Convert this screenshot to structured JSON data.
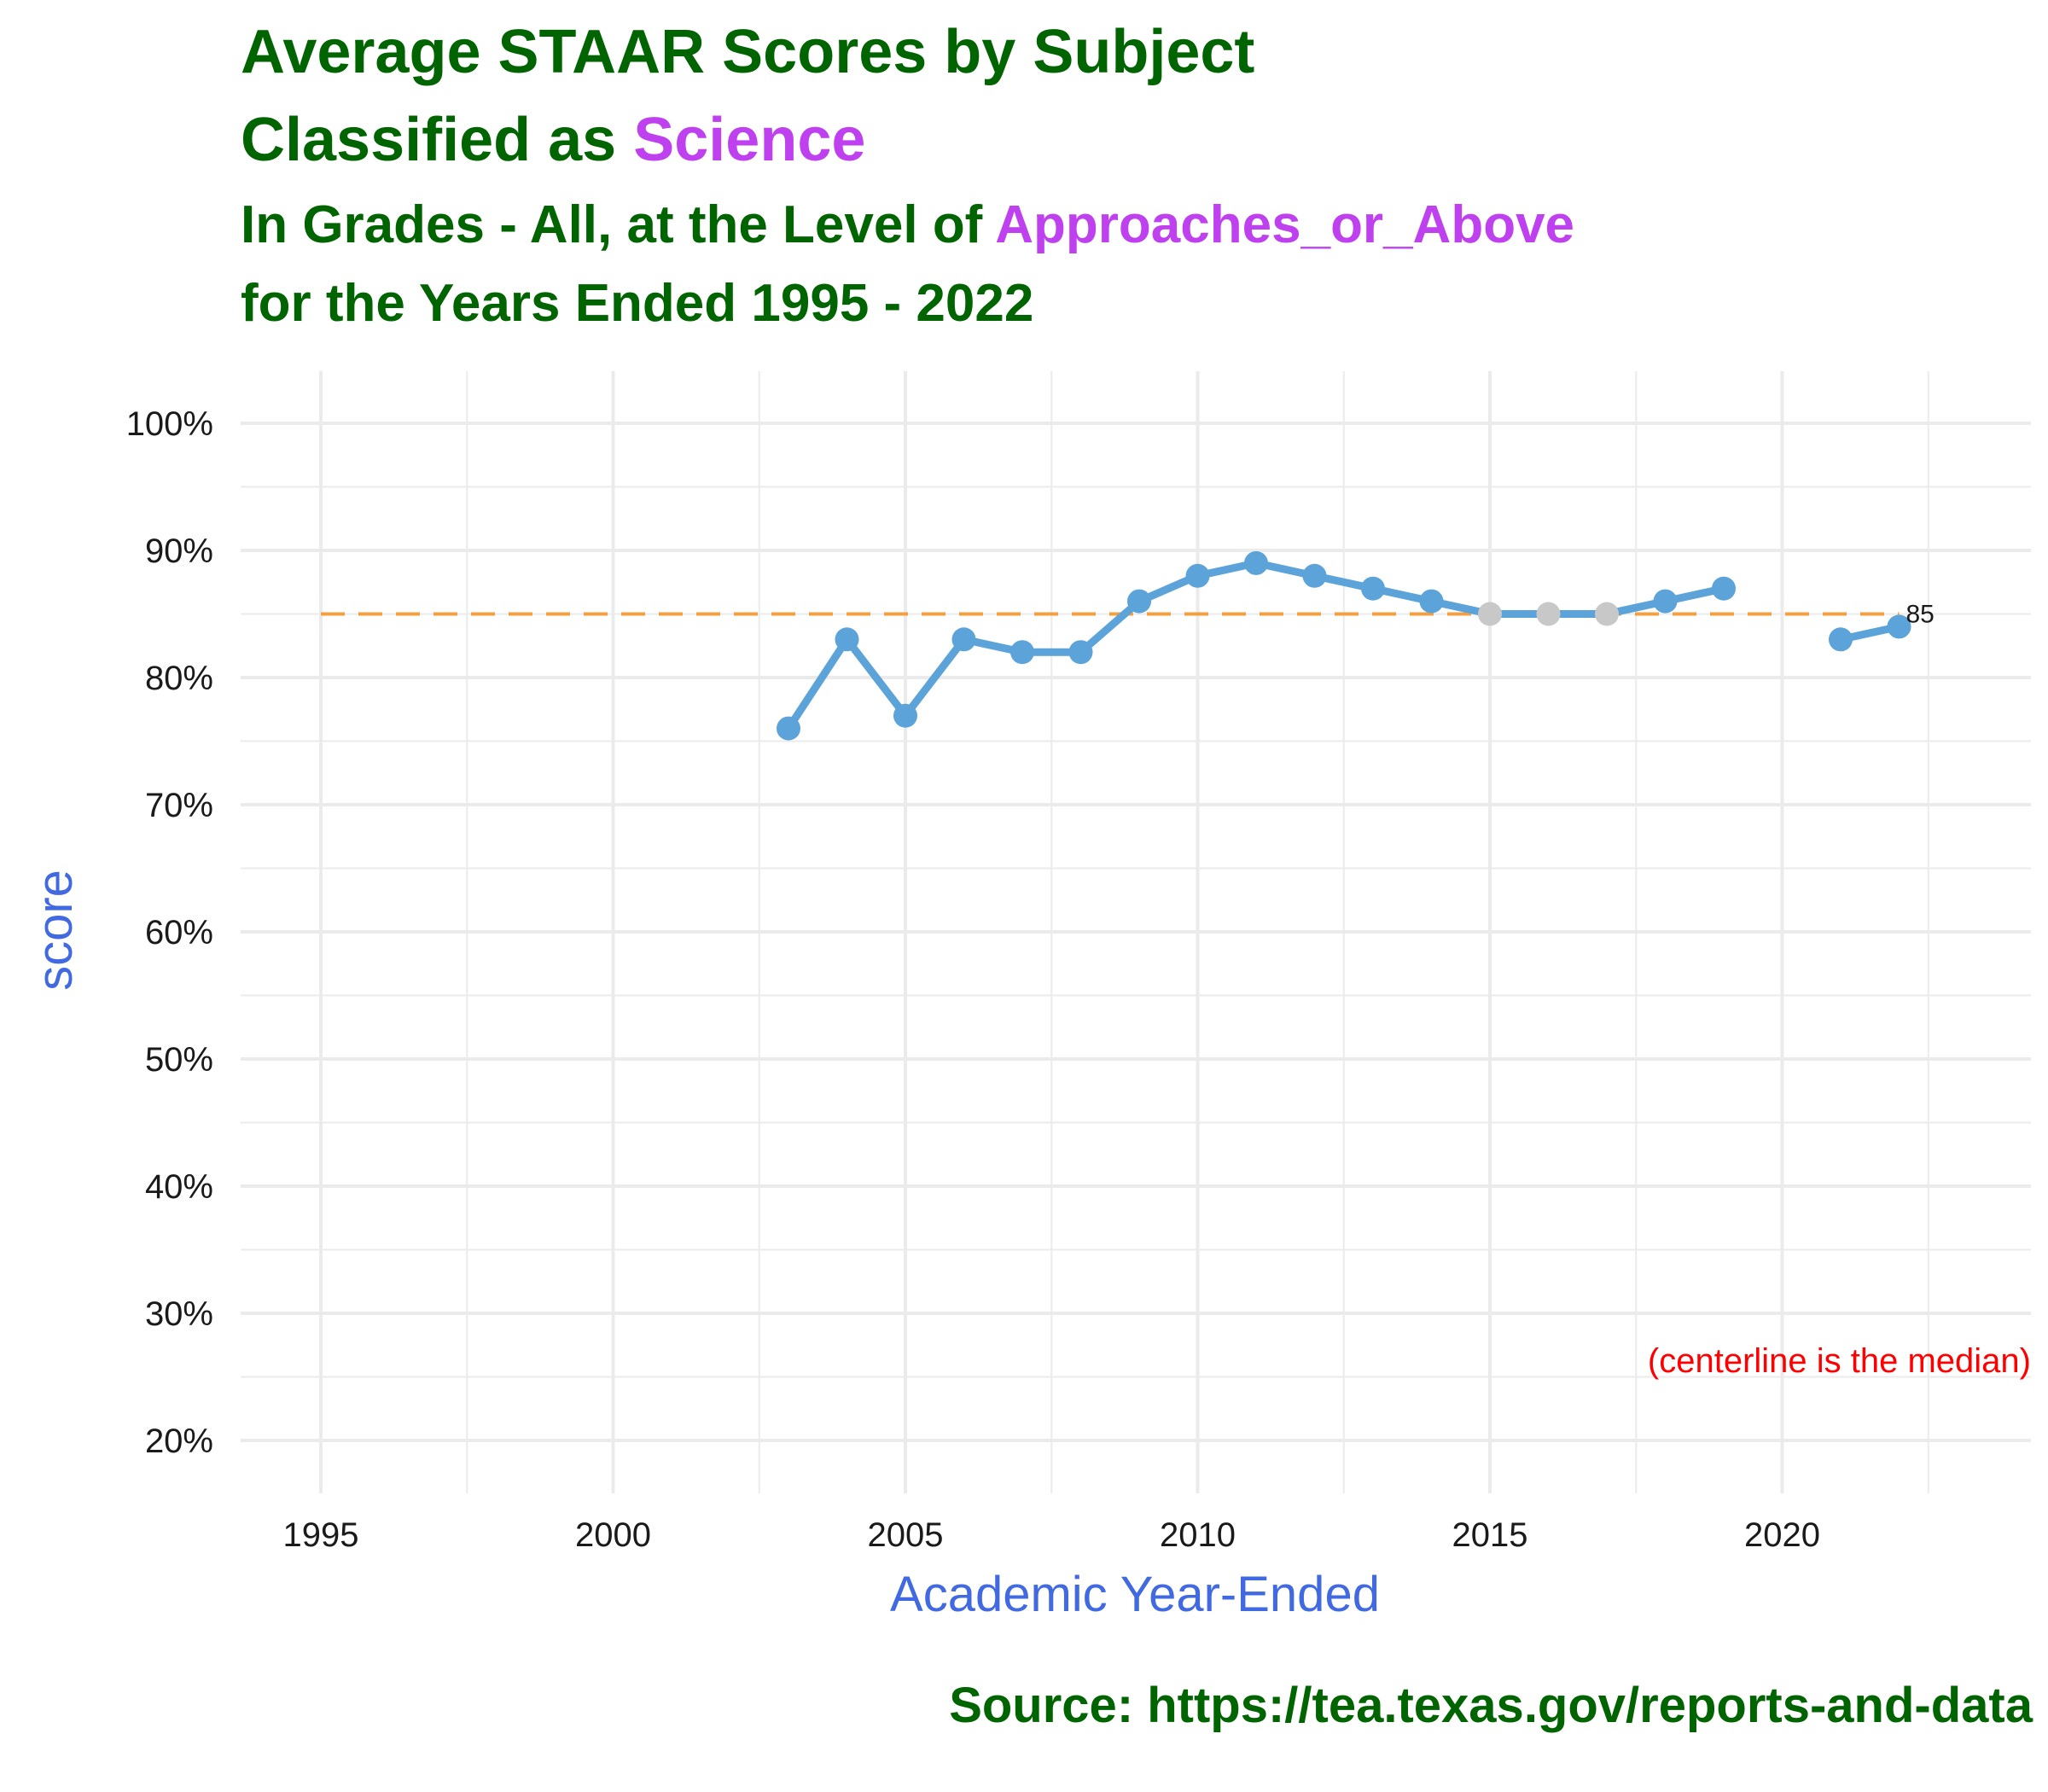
{
  "title": {
    "line1": "Average STAAR Scores by Subject",
    "line2_prefix": "Classified as ",
    "line2_highlight": "Science",
    "line3_prefix": "In Grades - All, at the Level of ",
    "line3_highlight": "Approaches_or_Above",
    "line4": "for the Years Ended 1995 - 2022"
  },
  "source": "Source:  https://tea.texas.gov/reports-and-data",
  "colors": {
    "title": "#006400",
    "highlight": "#BF40EF",
    "axis_title": "#4169E1",
    "line": "#5BA3D9",
    "neutral_point": "#C8C8C8",
    "median_line": "#F5A040",
    "annotation": "#FF0000",
    "grid": "#EBEBEB"
  },
  "chart_data": {
    "type": "line",
    "xlabel": "Academic Year-Ended",
    "ylabel": "score",
    "xlim": [
      1995,
      2023
    ],
    "ylim": [
      20,
      100
    ],
    "x_ticks": [
      1995,
      2000,
      2005,
      2010,
      2015,
      2020
    ],
    "y_ticks": [
      "20%",
      "30%",
      "40%",
      "50%",
      "60%",
      "70%",
      "80%",
      "90%",
      "100%"
    ],
    "grid": true,
    "median": 85,
    "median_label": "85",
    "annotation": "(centerline is the median)",
    "series": [
      {
        "segments": [
          [
            [
              2003,
              76
            ],
            [
              2004,
              83
            ],
            [
              2005,
              77
            ],
            [
              2006,
              83
            ],
            [
              2007,
              82
            ],
            [
              2008,
              82
            ],
            [
              2009,
              86
            ],
            [
              2010,
              88
            ],
            [
              2011,
              89
            ],
            [
              2012,
              88
            ],
            [
              2013,
              87
            ],
            [
              2014,
              86
            ],
            [
              2015,
              85
            ],
            [
              2016,
              85
            ],
            [
              2017,
              85
            ],
            [
              2018,
              86
            ],
            [
              2019,
              87
            ]
          ],
          [
            [
              2021,
              83
            ],
            [
              2022,
              84
            ]
          ]
        ]
      }
    ]
  }
}
